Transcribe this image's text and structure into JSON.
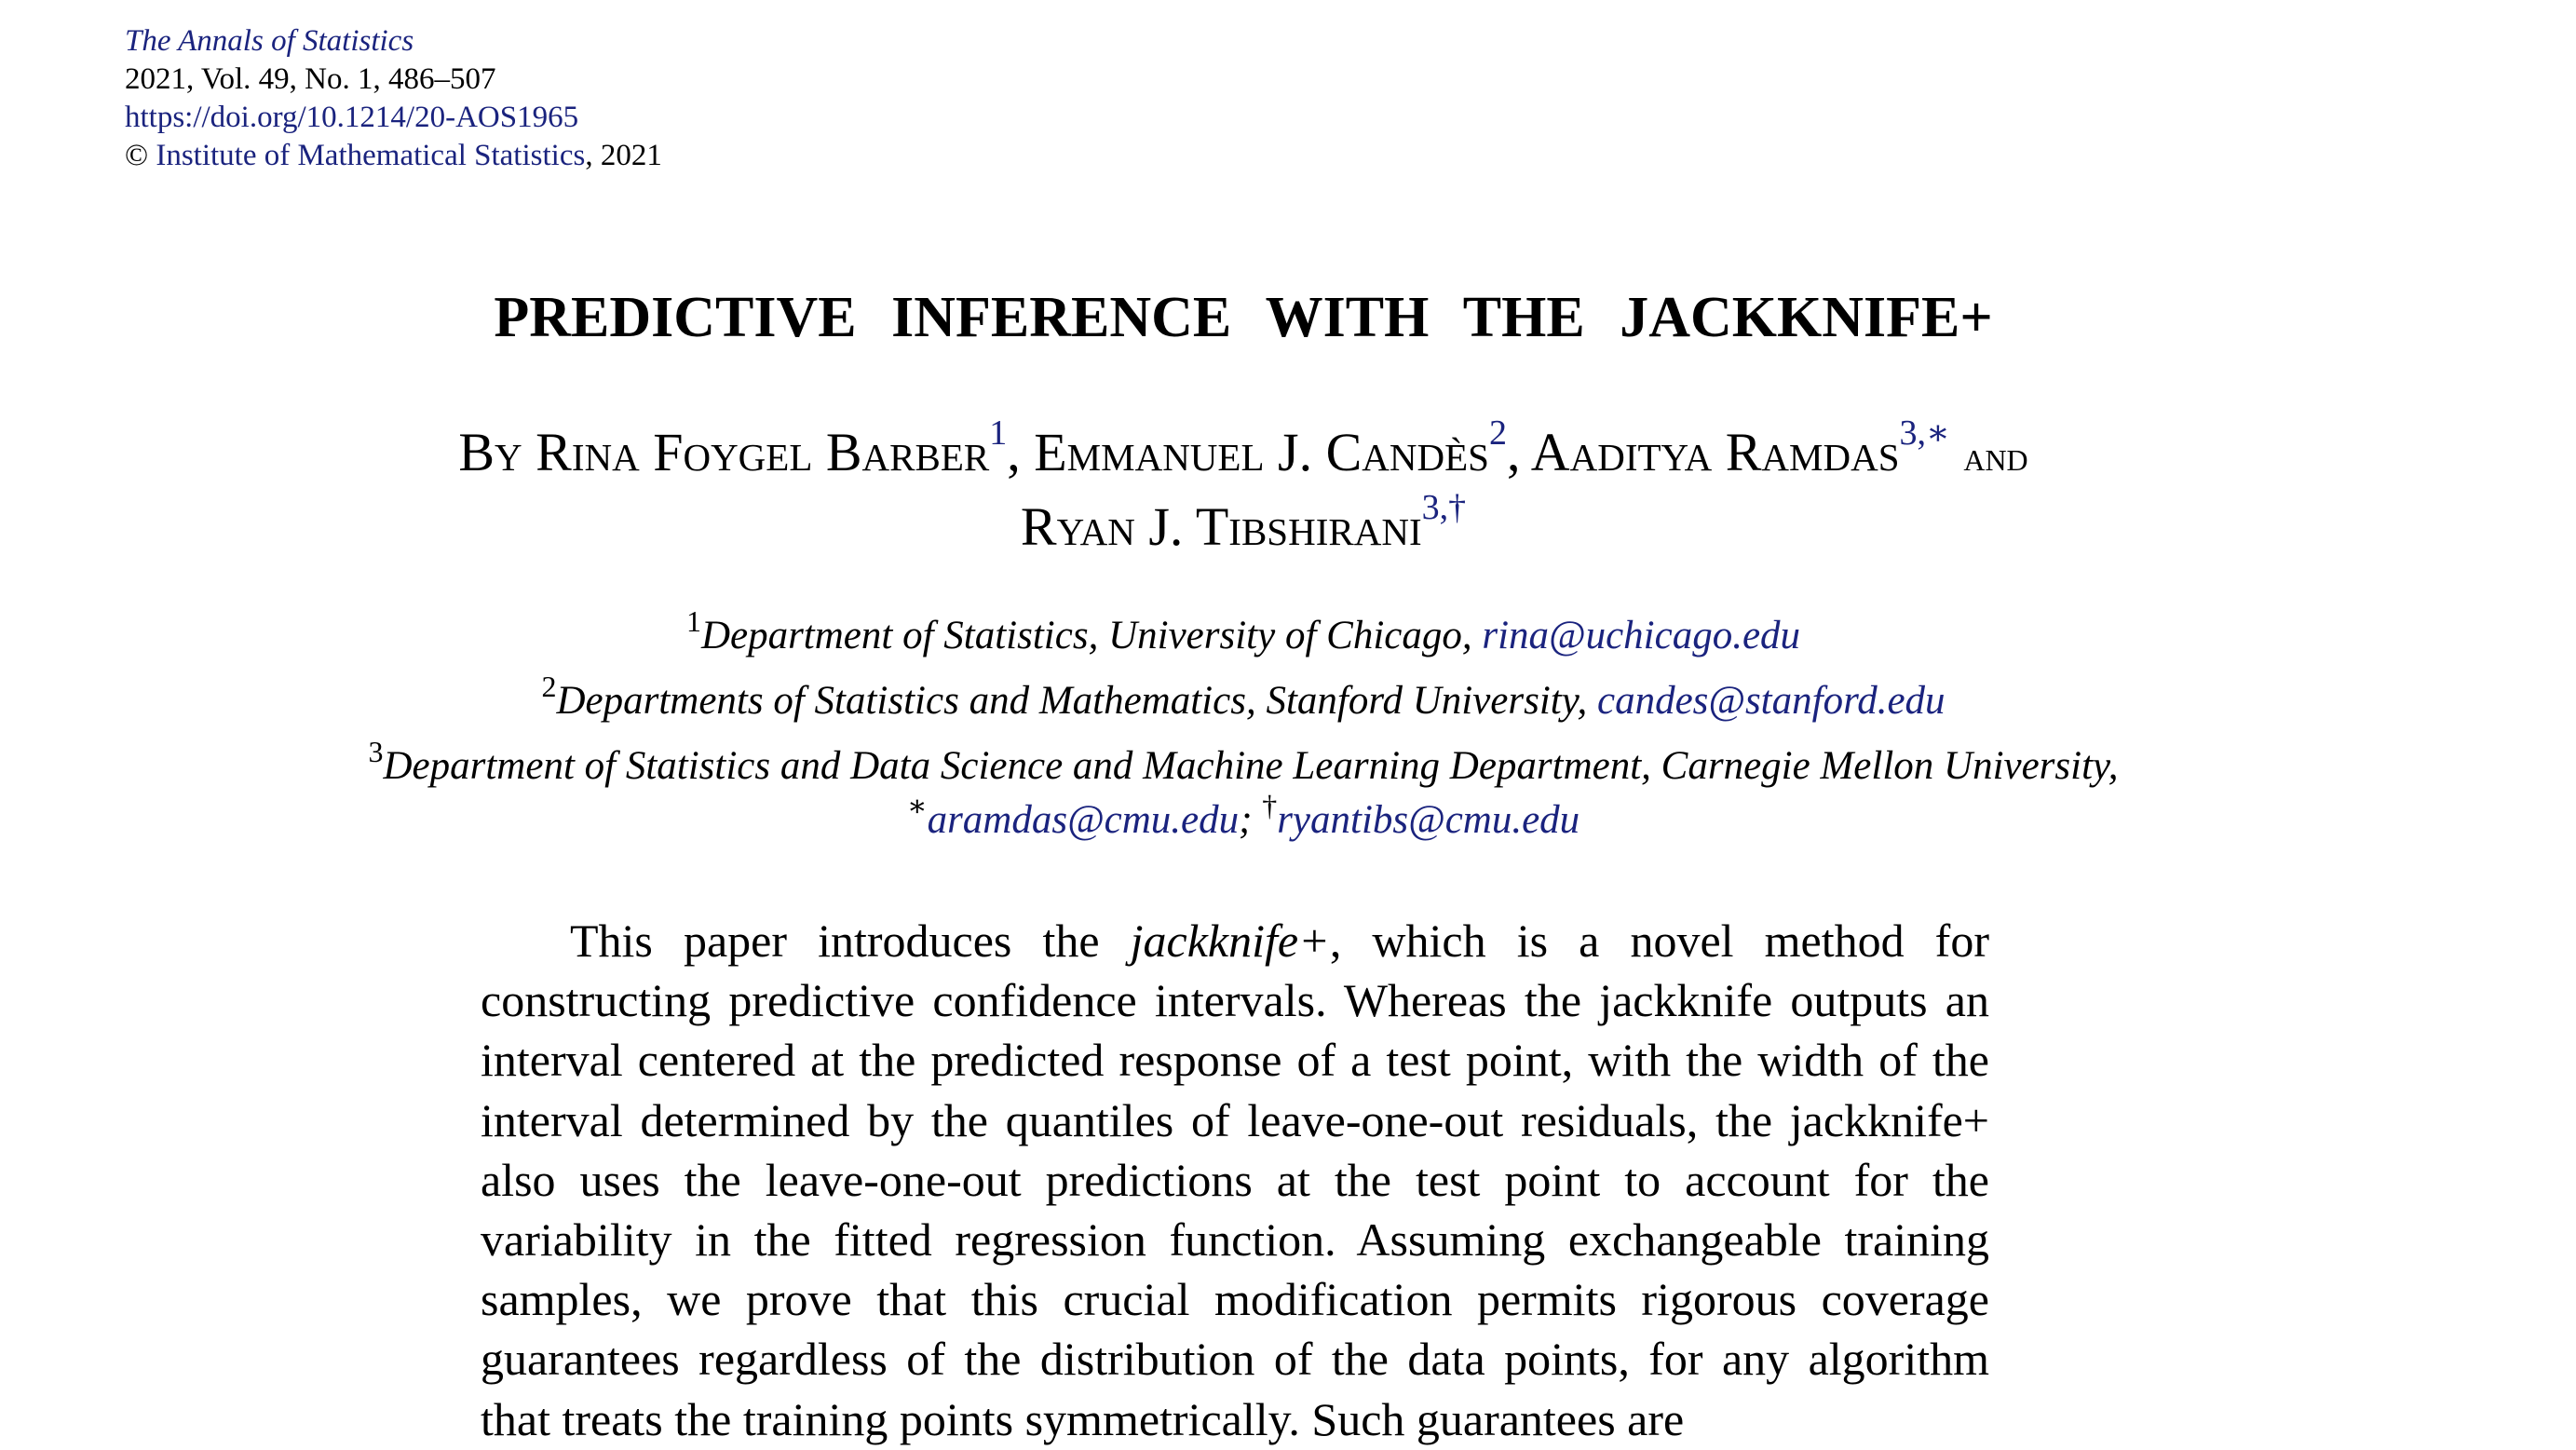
{
  "journal": {
    "name": "The Annals of Statistics",
    "volume_line": "2021, Vol. 49, No. 1, 486–507",
    "doi": "https://doi.org/10.1214/20-AOS1965",
    "copyright_symbol": "©",
    "copyright_holder": "Institute of Mathematical Statistics",
    "copyright_year": ", 2021"
  },
  "title": "PREDICTIVE INFERENCE WITH THE JACKKNIFE+",
  "byline": {
    "by": "By",
    "authors": [
      {
        "name": "Rina Foygel Barber",
        "marks": "1"
      },
      {
        "name": "Emmanuel J. Candès",
        "marks": "2"
      },
      {
        "name": "Aaditya Ramdas",
        "marks": "3,∗"
      },
      {
        "name": "Ryan J. Tibshirani",
        "marks": "3,†"
      }
    ],
    "comma": ",",
    "and": "and"
  },
  "affiliations": [
    {
      "mark": "1",
      "text": "Department of Statistics, University of Chicago, ",
      "email": "rina@uchicago.edu"
    },
    {
      "mark": "2",
      "text": "Departments of Statistics and Mathematics, Stanford University, ",
      "email": "candes@stanford.edu"
    },
    {
      "mark": "3",
      "text": "Department of Statistics and Data Science and Machine Learning Department, Carnegie Mellon University,"
    }
  ],
  "emails_line": [
    {
      "mark": "∗",
      "email": "aramdas@cmu.edu",
      "sep": "; "
    },
    {
      "mark": "†",
      "email": "ryantibs@cmu.edu"
    }
  ],
  "abstract": {
    "lead": "This paper introduces the ",
    "term": "jackknife+",
    "body": ", which is a novel method for constructing predictive confidence intervals. Whereas the jackknife outputs an interval centered at the predicted response of a test point, with the width of the interval determined by the quantiles of leave-one-out residuals, the jackknife+ also uses the leave-one-out predictions at the test point to account for the variability in the fitted regression function. Assuming exchangeable training samples, we prove that this crucial modification permits rigorous coverage guarantees regardless of the distribution of the data points, for any algorithm that treats the training points symmetrically. Such guarantees are"
  }
}
